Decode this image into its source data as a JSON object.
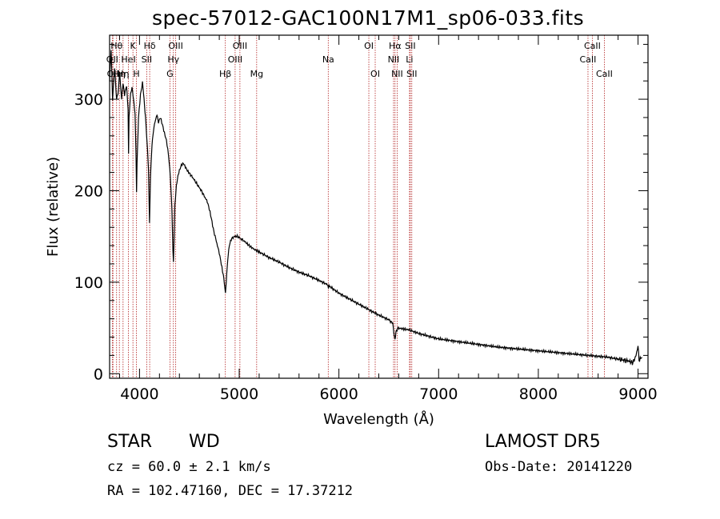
{
  "title": "spec-57012-GAC100N17M1_sp06-033.fits",
  "info": {
    "class_label": "STAR",
    "subclass": "WD",
    "survey": "LAMOST DR5",
    "cz": "cz = 60.0 ± 2.1 km/s",
    "obs_date": "Obs-Date: 20141220",
    "radec": "RA = 102.47160, DEC =  17.37212"
  },
  "colors": {
    "line": "#000000",
    "lines_marker": "#b22222",
    "background": "#ffffff"
  },
  "chart_data": {
    "type": "line",
    "title": "spec-57012-GAC100N17M1_sp06-033.fits",
    "xlabel": "Wavelength (Å)",
    "ylabel": "Flux (relative)",
    "xlim": [
      3700,
      9100
    ],
    "ylim": [
      -5,
      370
    ],
    "xticks": [
      4000,
      5000,
      6000,
      7000,
      8000,
      9000
    ],
    "yticks": [
      0,
      100,
      200,
      300
    ],
    "grid": false,
    "series": [
      {
        "points": [
          [
            3700,
            320
          ],
          [
            3715,
            355
          ],
          [
            3730,
            300
          ],
          [
            3750,
            335
          ],
          [
            3770,
            300
          ],
          [
            3790,
            310
          ],
          [
            3800,
            330
          ],
          [
            3820,
            300
          ],
          [
            3835,
            318
          ],
          [
            3850,
            305
          ],
          [
            3870,
            315
          ],
          [
            3885,
            290
          ],
          [
            3890,
            240
          ],
          [
            3895,
            280
          ],
          [
            3910,
            305
          ],
          [
            3925,
            312
          ],
          [
            3940,
            300
          ],
          [
            3955,
            285
          ],
          [
            3965,
            240
          ],
          [
            3970,
            200
          ],
          [
            3975,
            230
          ],
          [
            3990,
            280
          ],
          [
            4010,
            305
          ],
          [
            4030,
            318
          ],
          [
            4045,
            300
          ],
          [
            4060,
            280
          ],
          [
            4075,
            255
          ],
          [
            4090,
            225
          ],
          [
            4100,
            165
          ],
          [
            4110,
            215
          ],
          [
            4125,
            250
          ],
          [
            4140,
            265
          ],
          [
            4155,
            275
          ],
          [
            4175,
            283
          ],
          [
            4190,
            275
          ],
          [
            4210,
            280
          ],
          [
            4230,
            272
          ],
          [
            4250,
            263
          ],
          [
            4270,
            255
          ],
          [
            4290,
            240
          ],
          [
            4310,
            215
          ],
          [
            4325,
            180
          ],
          [
            4335,
            135
          ],
          [
            4340,
            123
          ],
          [
            4345,
            140
          ],
          [
            4355,
            185
          ],
          [
            4370,
            205
          ],
          [
            4385,
            215
          ],
          [
            4400,
            222
          ],
          [
            4420,
            228
          ],
          [
            4440,
            230
          ],
          [
            4460,
            226
          ],
          [
            4480,
            222
          ],
          [
            4500,
            219
          ],
          [
            4530,
            215
          ],
          [
            4560,
            210
          ],
          [
            4590,
            205
          ],
          [
            4620,
            200
          ],
          [
            4650,
            194
          ],
          [
            4680,
            188
          ],
          [
            4700,
            180
          ],
          [
            4720,
            170
          ],
          [
            4740,
            158
          ],
          [
            4770,
            145
          ],
          [
            4800,
            132
          ],
          [
            4820,
            120
          ],
          [
            4840,
            108
          ],
          [
            4855,
            95
          ],
          [
            4862,
            88
          ],
          [
            4870,
            100
          ],
          [
            4885,
            125
          ],
          [
            4900,
            140
          ],
          [
            4920,
            147
          ],
          [
            4950,
            150
          ],
          [
            4980,
            150
          ],
          [
            5010,
            148
          ],
          [
            5050,
            145
          ],
          [
            5100,
            140
          ],
          [
            5150,
            136
          ],
          [
            5200,
            133
          ],
          [
            5300,
            127
          ],
          [
            5400,
            122
          ],
          [
            5500,
            116
          ],
          [
            5600,
            111
          ],
          [
            5700,
            107
          ],
          [
            5800,
            102
          ],
          [
            5890,
            97
          ],
          [
            5895,
            92
          ],
          [
            5900,
            96
          ],
          [
            6000,
            88
          ],
          [
            6100,
            82
          ],
          [
            6200,
            76
          ],
          [
            6300,
            70
          ],
          [
            6400,
            64
          ],
          [
            6500,
            59
          ],
          [
            6540,
            55
          ],
          [
            6555,
            42
          ],
          [
            6563,
            37
          ],
          [
            6572,
            45
          ],
          [
            6590,
            50
          ],
          [
            6700,
            48
          ],
          [
            6800,
            44
          ],
          [
            6900,
            41
          ],
          [
            7000,
            38
          ],
          [
            7200,
            35
          ],
          [
            7400,
            32
          ],
          [
            7600,
            29
          ],
          [
            7800,
            27
          ],
          [
            8000,
            25
          ],
          [
            8200,
            23
          ],
          [
            8400,
            21
          ],
          [
            8500,
            20
          ],
          [
            8600,
            19
          ],
          [
            8700,
            18
          ],
          [
            8800,
            16
          ],
          [
            8900,
            14
          ],
          [
            8950,
            12
          ],
          [
            8980,
            20
          ],
          [
            9000,
            30
          ],
          [
            9010,
            15
          ],
          [
            9040,
            18
          ]
        ]
      }
    ],
    "lines": [
      {
        "wl": 3727,
        "label": "OII",
        "row": 2
      },
      {
        "wl": 3734,
        "label": "OII",
        "row": 3
      },
      {
        "wl": 3770,
        "label": "Hθ",
        "row": 1
      },
      {
        "wl": 3798,
        "label": "Hη",
        "row": 3
      },
      {
        "wl": 3835,
        "label": "Hη",
        "row": 3
      },
      {
        "wl": 3889,
        "label": "HeI",
        "row": 2
      },
      {
        "wl": 3934,
        "label": "K",
        "row": 1
      },
      {
        "wl": 3969,
        "label": "H",
        "row": 3
      },
      {
        "wl": 4072,
        "label": "SII",
        "row": 2
      },
      {
        "wl": 4102,
        "label": "Hδ",
        "row": 1
      },
      {
        "wl": 4305,
        "label": "G",
        "row": 3
      },
      {
        "wl": 4340,
        "label": "Hγ",
        "row": 2
      },
      {
        "wl": 4363,
        "label": "OIII",
        "row": 1
      },
      {
        "wl": 4861,
        "label": "Hβ",
        "row": 3
      },
      {
        "wl": 4959,
        "label": "OIII",
        "row": 2
      },
      {
        "wl": 5007,
        "label": "OIII",
        "row": 1
      },
      {
        "wl": 5175,
        "label": "Mg",
        "row": 3
      },
      {
        "wl": 5893,
        "label": "Na",
        "row": 2
      },
      {
        "wl": 6300,
        "label": "OI",
        "row": 1
      },
      {
        "wl": 6364,
        "label": "OI",
        "row": 3
      },
      {
        "wl": 6548,
        "label": "NII",
        "row": 2
      },
      {
        "wl": 6563,
        "label": "Hα",
        "row": 1
      },
      {
        "wl": 6584,
        "label": "NII",
        "row": 3
      },
      {
        "wl": 6708,
        "label": "Li",
        "row": 2
      },
      {
        "wl": 6716,
        "label": "SII",
        "row": 1
      },
      {
        "wl": 6731,
        "label": "SII",
        "row": 3
      },
      {
        "wl": 8498,
        "label": "CaII",
        "row": 2
      },
      {
        "wl": 8542,
        "label": "CaII",
        "row": 1
      },
      {
        "wl": 8662,
        "label": "CaII",
        "row": 3
      }
    ]
  }
}
